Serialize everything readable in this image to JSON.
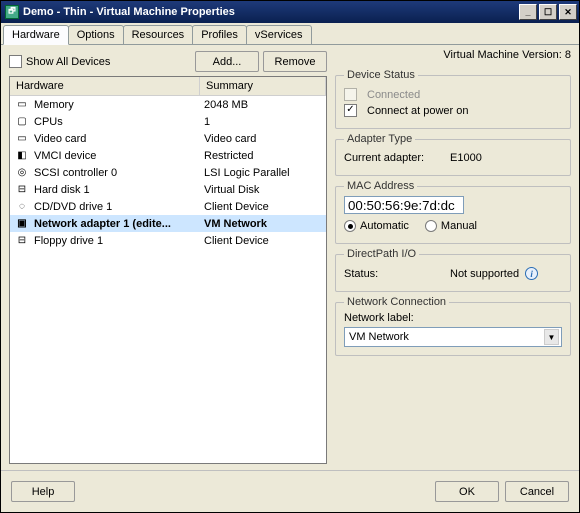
{
  "window": {
    "title": "Demo - Thin - Virtual Machine Properties",
    "vm_version_label": "Virtual Machine Version: 8"
  },
  "tabs": [
    "Hardware",
    "Options",
    "Resources",
    "Profiles",
    "vServices"
  ],
  "toolbar": {
    "show_all_label": "Show All Devices",
    "add_label": "Add...",
    "remove_label": "Remove"
  },
  "columns": {
    "hardware": "Hardware",
    "summary": "Summary"
  },
  "devices": [
    {
      "icon": "▭",
      "name": "Memory",
      "summary": "2048 MB"
    },
    {
      "icon": "▢",
      "name": "CPUs",
      "summary": "1"
    },
    {
      "icon": "▭",
      "name": "Video card",
      "summary": "Video card"
    },
    {
      "icon": "◧",
      "name": "VMCI device",
      "summary": "Restricted"
    },
    {
      "icon": "◎",
      "name": "SCSI controller 0",
      "summary": "LSI Logic Parallel"
    },
    {
      "icon": "⊟",
      "name": "Hard disk 1",
      "summary": "Virtual Disk"
    },
    {
      "icon": "◌",
      "name": "CD/DVD drive 1",
      "summary": "Client Device"
    },
    {
      "icon": "▣",
      "name": "Network adapter 1 (edite...",
      "summary": "VM Network"
    },
    {
      "icon": "⊟",
      "name": "Floppy drive 1",
      "summary": "Client Device"
    }
  ],
  "selected_device_index": 7,
  "panel": {
    "device_status": {
      "legend": "Device Status",
      "connected": "Connected",
      "connect_power": "Connect at power on"
    },
    "adapter": {
      "legend": "Adapter Type",
      "label": "Current adapter:",
      "value": "E1000"
    },
    "mac": {
      "legend": "MAC Address",
      "value": "00:50:56:9e:7d:dc",
      "auto": "Automatic",
      "manual": "Manual"
    },
    "directpath": {
      "legend": "DirectPath I/O",
      "label": "Status:",
      "value": "Not supported"
    },
    "netconn": {
      "legend": "Network Connection",
      "label": "Network label:",
      "value": "VM Network"
    }
  },
  "buttons": {
    "help": "Help",
    "ok": "OK",
    "cancel": "Cancel"
  }
}
